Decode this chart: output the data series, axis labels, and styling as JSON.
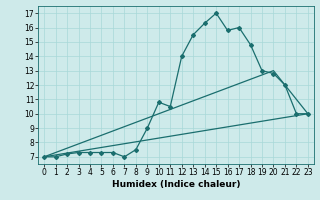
{
  "title": "",
  "xlabel": "Humidex (Indice chaleur)",
  "ylabel": "",
  "xlim": [
    -0.5,
    23.5
  ],
  "ylim": [
    6.5,
    17.5
  ],
  "yticks": [
    7,
    8,
    9,
    10,
    11,
    12,
    13,
    14,
    15,
    16,
    17
  ],
  "xticks": [
    0,
    1,
    2,
    3,
    4,
    5,
    6,
    7,
    8,
    9,
    10,
    11,
    12,
    13,
    14,
    15,
    16,
    17,
    18,
    19,
    20,
    21,
    22,
    23
  ],
  "bg_color": "#ceeaea",
  "line_color": "#1a6e6e",
  "line1_x": [
    0,
    1,
    2,
    3,
    4,
    5,
    6,
    7,
    8,
    9,
    10,
    11,
    12,
    13,
    14,
    15,
    16,
    17,
    18,
    19,
    20,
    21,
    22,
    23
  ],
  "line1_y": [
    7.0,
    7.0,
    7.2,
    7.3,
    7.3,
    7.3,
    7.3,
    7.0,
    7.5,
    9.0,
    10.8,
    10.5,
    14.0,
    15.5,
    16.3,
    17.0,
    15.8,
    16.0,
    14.8,
    13.0,
    12.8,
    12.0,
    10.0,
    10.0
  ],
  "line2_x": [
    0,
    23
  ],
  "line2_y": [
    7.0,
    10.0
  ],
  "line3_x": [
    0,
    20,
    23
  ],
  "line3_y": [
    7.0,
    13.0,
    10.0
  ]
}
